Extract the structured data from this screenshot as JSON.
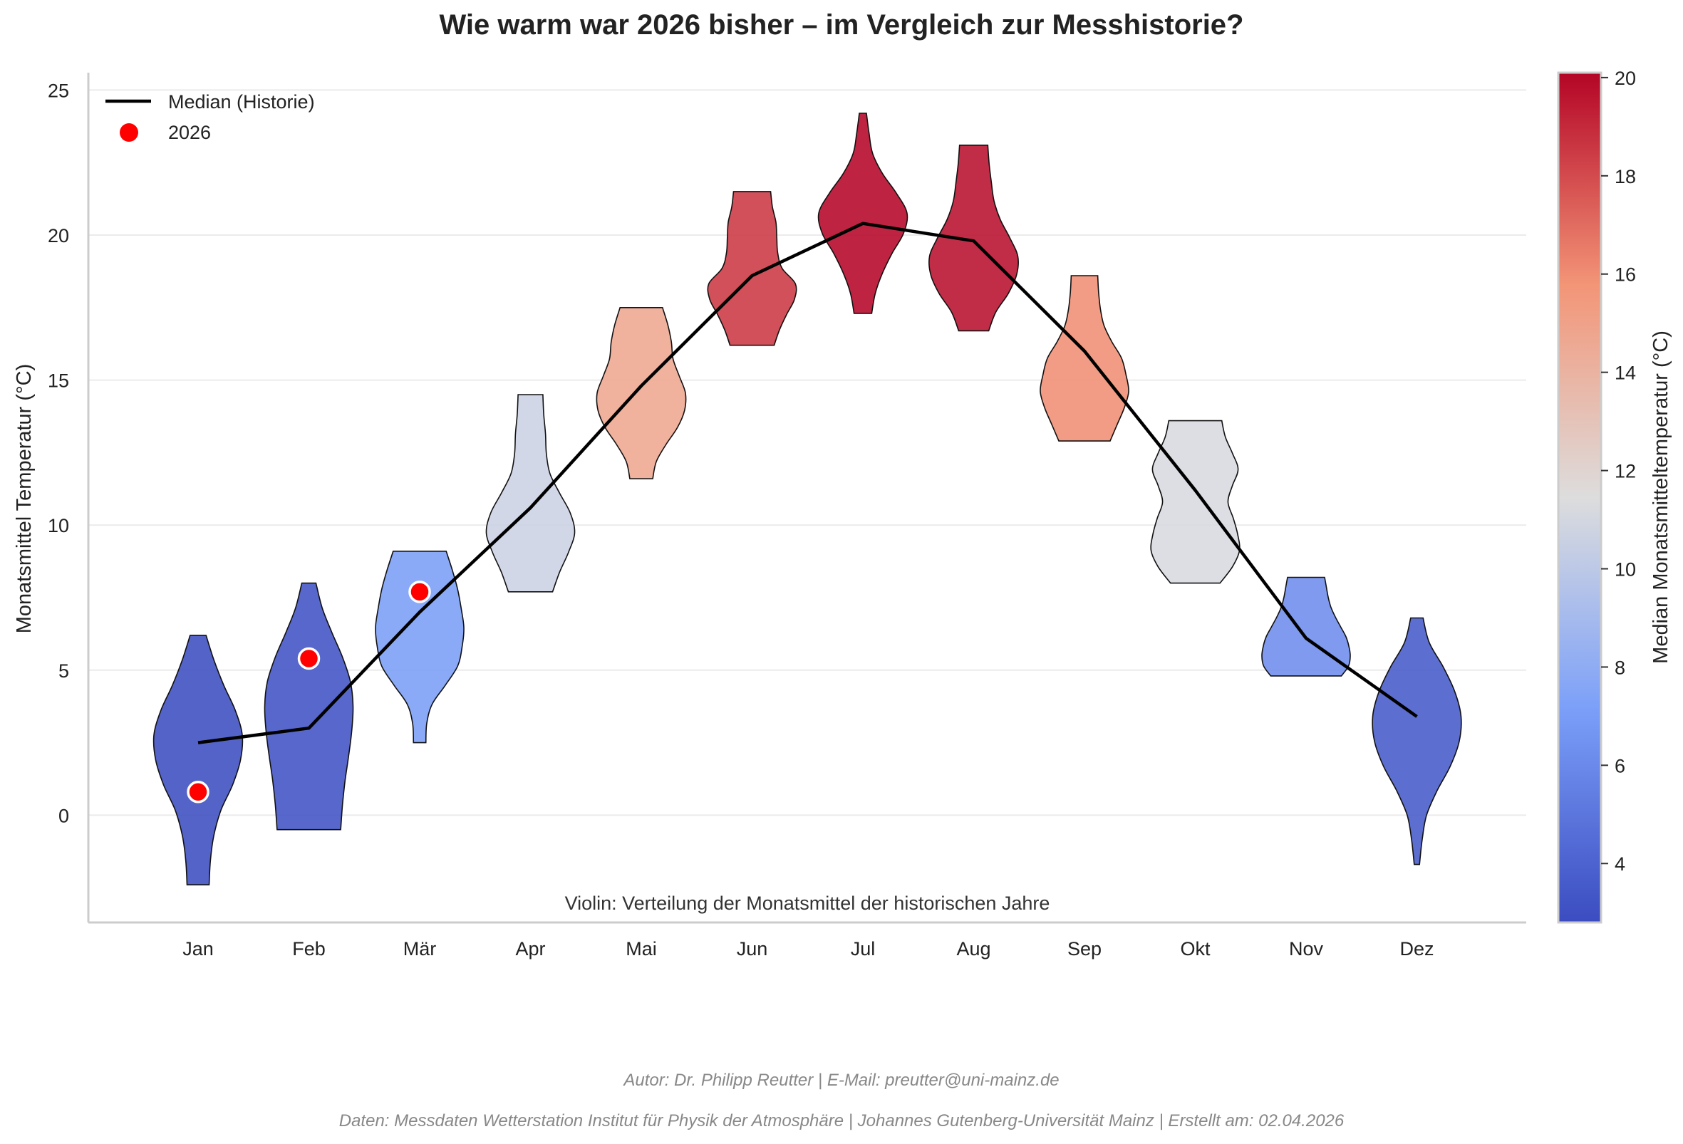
{
  "chart_data": {
    "type": "violin",
    "title": "Wie warm war 2026 bisher – im Vergleich zur Messhistorie?",
    "xlabel": "",
    "ylabel": "Monatsmittel Temperatur (°C)",
    "ylim": [
      -3.7,
      25.6
    ],
    "yticks": [
      0,
      5,
      10,
      15,
      20,
      25
    ],
    "grid": true,
    "legend_position": "top-left",
    "categories": [
      "Jan",
      "Feb",
      "Mär",
      "Apr",
      "Mai",
      "Jun",
      "Jul",
      "Aug",
      "Sep",
      "Okt",
      "Nov",
      "Dez"
    ],
    "violins": [
      {
        "min": -2.4,
        "max": 6.2,
        "widths": [
          0.25,
          0.28,
          0.36,
          0.52,
          0.78,
          0.96,
          1.0,
          0.84,
          0.58,
          0.36,
          0.18
        ]
      },
      {
        "min": -0.5,
        "max": 8.0,
        "widths": [
          0.72,
          0.76,
          0.82,
          0.9,
          0.97,
          1.0,
          0.94,
          0.76,
          0.52,
          0.3,
          0.16
        ]
      },
      {
        "min": 2.5,
        "max": 9.1,
        "widths": [
          0.14,
          0.16,
          0.28,
          0.58,
          0.86,
          0.96,
          1.0,
          0.94,
          0.86,
          0.74,
          0.6
        ]
      },
      {
        "min": 7.7,
        "max": 14.5,
        "widths": [
          0.5,
          0.66,
          0.86,
          1.0,
          0.9,
          0.66,
          0.44,
          0.36,
          0.34,
          0.3,
          0.28
        ]
      },
      {
        "min": 11.6,
        "max": 17.5,
        "widths": [
          0.26,
          0.34,
          0.56,
          0.82,
          0.98,
          1.0,
          0.86,
          0.72,
          0.68,
          0.6,
          0.48
        ]
      },
      {
        "min": 16.2,
        "max": 21.5,
        "widths": [
          0.5,
          0.62,
          0.78,
          0.96,
          0.98,
          0.68,
          0.58,
          0.56,
          0.54,
          0.46,
          0.42
        ]
      },
      {
        "min": 17.3,
        "max": 24.2,
        "widths": [
          0.2,
          0.28,
          0.44,
          0.66,
          0.92,
          1.0,
          0.76,
          0.44,
          0.22,
          0.14,
          0.08
        ]
      },
      {
        "min": 16.7,
        "max": 23.1,
        "widths": [
          0.34,
          0.5,
          0.78,
          0.97,
          1.0,
          0.82,
          0.6,
          0.46,
          0.4,
          0.35,
          0.32
        ]
      },
      {
        "min": 12.9,
        "max": 18.6,
        "widths": [
          0.58,
          0.74,
          0.9,
          1.0,
          0.94,
          0.84,
          0.62,
          0.44,
          0.36,
          0.32,
          0.3
        ]
      },
      {
        "min": 8.0,
        "max": 13.6,
        "widths": [
          0.56,
          0.84,
          1.0,
          0.96,
          0.86,
          0.74,
          0.84,
          0.97,
          0.84,
          0.68,
          0.6
        ]
      },
      {
        "min": 4.8,
        "max": 8.2,
        "widths": [
          0.8,
          0.96,
          1.0,
          0.97,
          0.9,
          0.78,
          0.66,
          0.56,
          0.5,
          0.46,
          0.42
        ]
      },
      {
        "min": -1.7,
        "max": 6.8,
        "widths": [
          0.06,
          0.12,
          0.22,
          0.46,
          0.76,
          0.96,
          1.0,
          0.86,
          0.6,
          0.28,
          0.14
        ]
      }
    ],
    "series": [
      {
        "name": "Median (Historie)",
        "type": "line",
        "color": "#000000",
        "values": [
          2.5,
          3.0,
          7.0,
          10.6,
          14.8,
          18.6,
          20.4,
          19.8,
          16.0,
          11.2,
          6.1,
          3.4
        ]
      },
      {
        "name": "2026",
        "type": "scatter",
        "color": "#ff0000",
        "values": [
          0.8,
          5.4,
          7.7,
          null,
          null,
          null,
          null,
          null,
          null,
          null,
          null,
          null
        ]
      }
    ],
    "colorbar": {
      "label": "Median Monatsmitteltemperatur (°C)",
      "range": [
        2.8,
        20.1
      ],
      "ticks": [
        4,
        6,
        8,
        10,
        12,
        14,
        16,
        18,
        20
      ],
      "colormap": "coolwarm"
    },
    "annotation": "Violin: Verteilung der Monatsmittel der historischen Jahre"
  },
  "footer": {
    "line1": "Autor: Dr. Philipp Reutter  |  E-Mail: preutter@uni-mainz.de",
    "line2": "Daten: Messdaten Wetterstation Institut für Physik der Atmosphäre  |  Johannes Gutenberg-Universität Mainz  |  Erstellt am: 02.04.2026"
  }
}
